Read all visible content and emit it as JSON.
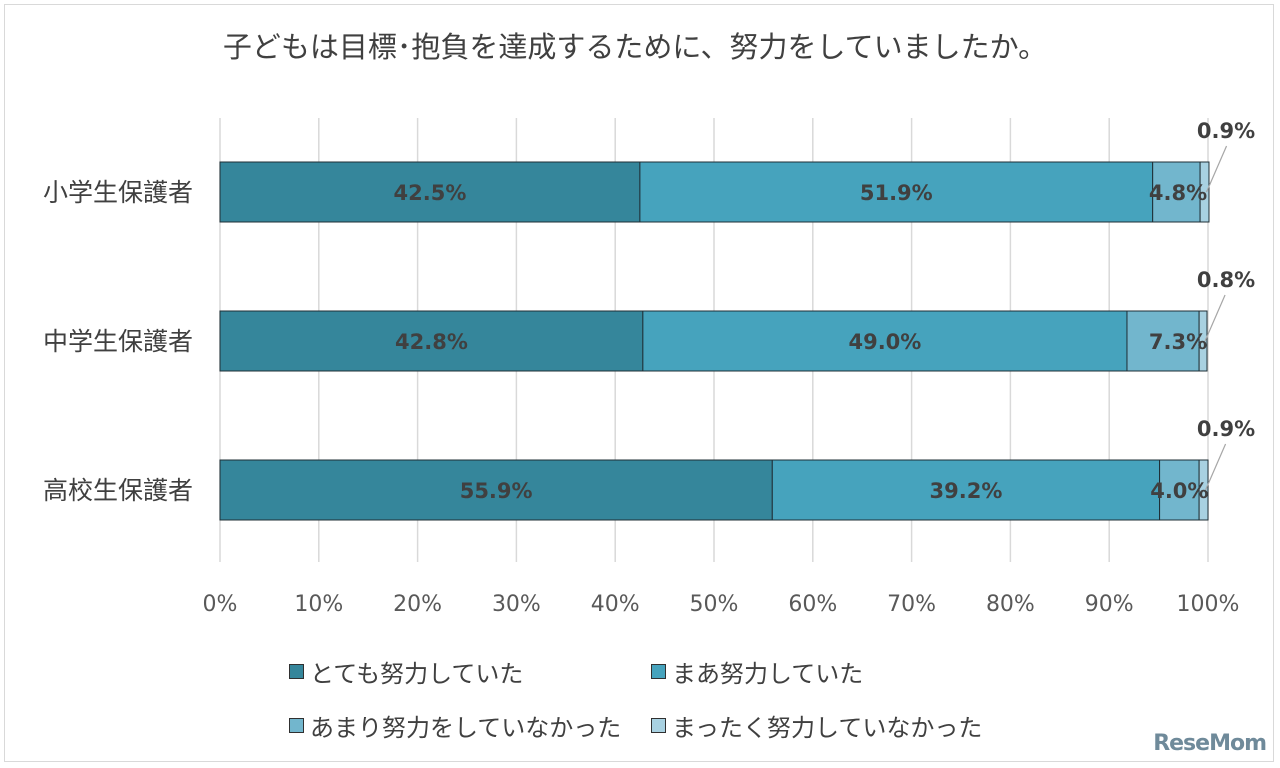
{
  "chart_data": {
    "type": "bar",
    "orientation": "horizontal",
    "stacked": true,
    "title": "子どもは目標･抱負を達成するために、努力をしていましたか。",
    "categories": [
      "小学生保護者",
      "中学生保護者",
      "高校生保護者"
    ],
    "series": [
      {
        "name": "とても努力していた",
        "values": [
          42.5,
          42.8,
          55.9
        ],
        "color": "#35869b"
      },
      {
        "name": "まあ努力していた",
        "values": [
          51.9,
          49.0,
          39.2
        ],
        "color": "#46a3bd"
      },
      {
        "name": "あまり努力をしていなかった",
        "values": [
          4.8,
          7.3,
          4.0
        ],
        "color": "#72b6cd"
      },
      {
        "name": "まったく努力していなかった",
        "values": [
          0.9,
          0.8,
          0.9
        ],
        "color": "#a8d1e1"
      }
    ],
    "value_labels": [
      [
        "42.5%",
        "51.9%",
        "4.8%",
        "0.9%"
      ],
      [
        "42.8%",
        "49.0%",
        "7.3%",
        "0.8%"
      ],
      [
        "55.9%",
        "39.2%",
        "4.0%",
        "0.9%"
      ]
    ],
    "x_ticks": [
      "0%",
      "10%",
      "20%",
      "30%",
      "40%",
      "50%",
      "60%",
      "70%",
      "80%",
      "90%",
      "100%"
    ],
    "xlim": [
      0,
      100
    ],
    "grid": true,
    "legend_position": "bottom"
  },
  "watermark": "ReseMom"
}
